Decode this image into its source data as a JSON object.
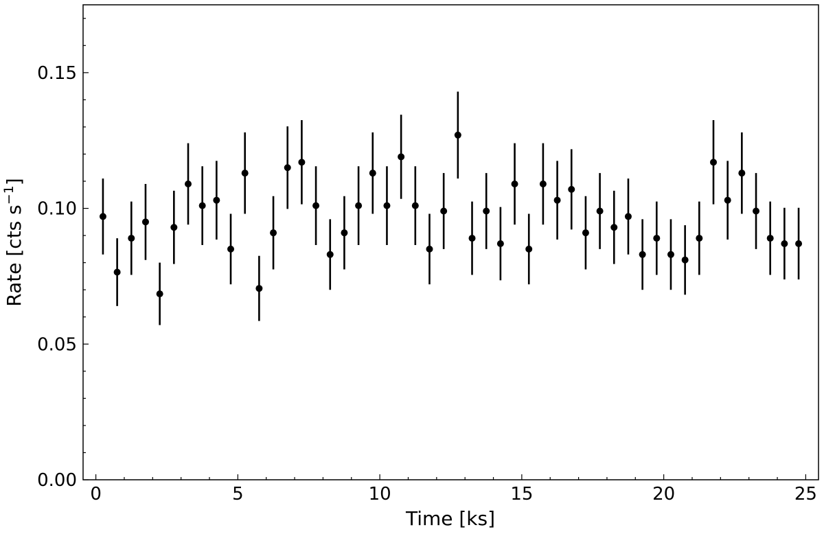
{
  "chart_data": {
    "type": "scatter",
    "xlabel": "Time [ks]",
    "ylabel_main": "Rate [cts s",
    "ylabel_sup": "−1",
    "ylabel_close": "]",
    "xlim": [
      -0.45,
      25.45
    ],
    "ylim": [
      0,
      0.175
    ],
    "xticks": [
      0,
      5,
      10,
      15,
      20,
      25
    ],
    "xtick_labels": [
      "0",
      "5",
      "10",
      "15",
      "20",
      "25"
    ],
    "yticks": [
      0.0,
      0.05,
      0.1,
      0.15
    ],
    "ytick_labels": [
      "0.00",
      "0.05",
      "0.10",
      "0.15"
    ],
    "grid": false,
    "marker_color": "#000000",
    "series": [
      {
        "x": [
          0.25,
          0.75,
          1.25,
          1.75,
          2.25,
          2.75,
          3.25,
          3.75,
          4.25,
          4.75,
          5.25,
          5.75,
          6.25,
          6.75,
          7.25,
          7.75,
          8.25,
          8.75,
          9.25,
          9.75,
          10.25,
          10.75,
          11.25,
          11.75,
          12.25,
          12.75,
          13.25,
          13.75,
          14.25,
          14.75,
          15.25,
          15.75,
          16.25,
          16.75,
          17.25,
          17.75,
          18.25,
          18.75,
          19.25,
          19.75,
          20.25,
          20.75,
          21.25,
          21.75,
          22.25,
          22.75,
          23.25,
          23.75,
          24.25,
          24.75
        ],
        "y": [
          0.097,
          0.0765,
          0.089,
          0.095,
          0.0685,
          0.093,
          0.109,
          0.101,
          0.103,
          0.085,
          0.113,
          0.0705,
          0.091,
          0.115,
          0.117,
          0.101,
          0.083,
          0.091,
          0.101,
          0.113,
          0.101,
          0.119,
          0.101,
          0.085,
          0.099,
          0.127,
          0.089,
          0.099,
          0.087,
          0.109,
          0.085,
          0.109,
          0.103,
          0.107,
          0.091,
          0.099,
          0.093,
          0.097,
          0.083,
          0.089,
          0.083,
          0.081,
          0.089,
          0.117,
          0.103,
          0.113,
          0.099,
          0.089,
          0.087,
          0.087
        ],
        "yerr": [
          0.014,
          0.0125,
          0.0135,
          0.014,
          0.0115,
          0.0135,
          0.015,
          0.0145,
          0.0145,
          0.013,
          0.015,
          0.012,
          0.0135,
          0.0152,
          0.0155,
          0.0145,
          0.013,
          0.0135,
          0.0145,
          0.015,
          0.0145,
          0.0155,
          0.0145,
          0.013,
          0.014,
          0.016,
          0.0135,
          0.014,
          0.0135,
          0.015,
          0.013,
          0.015,
          0.0145,
          0.0148,
          0.0135,
          0.014,
          0.0135,
          0.014,
          0.013,
          0.0135,
          0.013,
          0.0128,
          0.0135,
          0.0155,
          0.0145,
          0.015,
          0.014,
          0.0135,
          0.0132,
          0.0132
        ]
      }
    ]
  }
}
